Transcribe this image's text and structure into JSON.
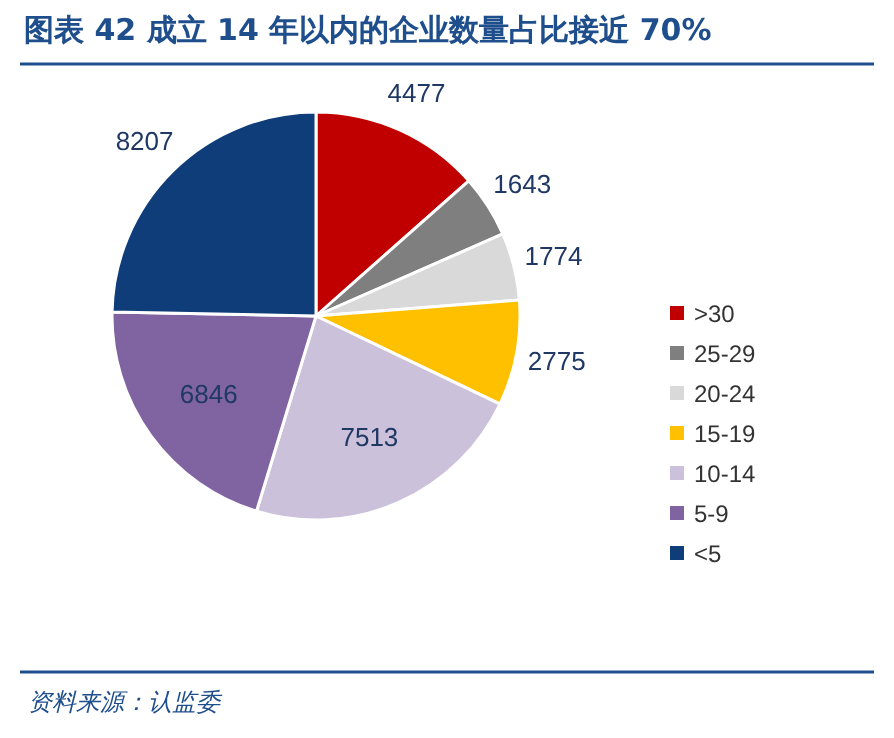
{
  "chart_data": {
    "type": "pie",
    "title": "图表 42  成立 14 年以内的企业数量占比接近 70%",
    "categories": [
      ">30",
      "25-29",
      "20-24",
      "15-19",
      "10-14",
      "5-9",
      "<5"
    ],
    "values": [
      4477,
      1643,
      1774,
      2775,
      7513,
      6846,
      8207
    ],
    "colors": [
      "#c00000",
      "#7f7f7f",
      "#d9d9d9",
      "#ffc000",
      "#ccc1da",
      "#8064a2",
      "#0f3d7a"
    ],
    "data_labels": true,
    "legend": "right",
    "annotations": [
      "资料来源：认监委"
    ]
  }
}
